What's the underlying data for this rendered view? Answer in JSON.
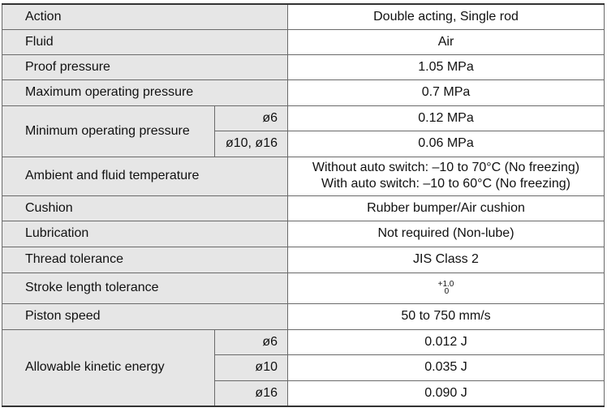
{
  "rows": {
    "action": {
      "label": "Action",
      "value": "Double acting, Single rod"
    },
    "fluid": {
      "label": "Fluid",
      "value": "Air"
    },
    "proof_pressure": {
      "label": "Proof pressure",
      "value": "1.05 MPa"
    },
    "max_pressure": {
      "label": "Maximum operating pressure",
      "value": "0.7 MPa"
    },
    "min_pressure": {
      "label": "Minimum operating pressure",
      "sub": [
        {
          "bore": "ø6",
          "value": "0.12 MPa"
        },
        {
          "bore": "ø10, ø16",
          "value": "0.06 MPa"
        }
      ]
    },
    "ambient_temp": {
      "label": "Ambient and fluid temperature",
      "value_line1": "Without auto switch: –10 to 70°C (No freezing)",
      "value_line2": "With auto switch: –10 to 60°C (No freezing)"
    },
    "cushion": {
      "label": "Cushion",
      "value": "Rubber bumper/Air cushion"
    },
    "lubrication": {
      "label": "Lubrication",
      "value": "Not required (Non-lube)"
    },
    "thread_tolerance": {
      "label": "Thread tolerance",
      "value": "JIS Class 2"
    },
    "stroke_tolerance": {
      "label": "Stroke length tolerance",
      "upper": "+1.0",
      "lower": "0"
    },
    "piston_speed": {
      "label": "Piston speed",
      "value": "50 to 750 mm/s"
    },
    "kinetic_energy": {
      "label": "Allowable kinetic energy",
      "sub": [
        {
          "bore": "ø6",
          "value": "0.012 J"
        },
        {
          "bore": "ø10",
          "value": "0.035 J"
        },
        {
          "bore": "ø16",
          "value": "0.090 J"
        }
      ]
    }
  }
}
